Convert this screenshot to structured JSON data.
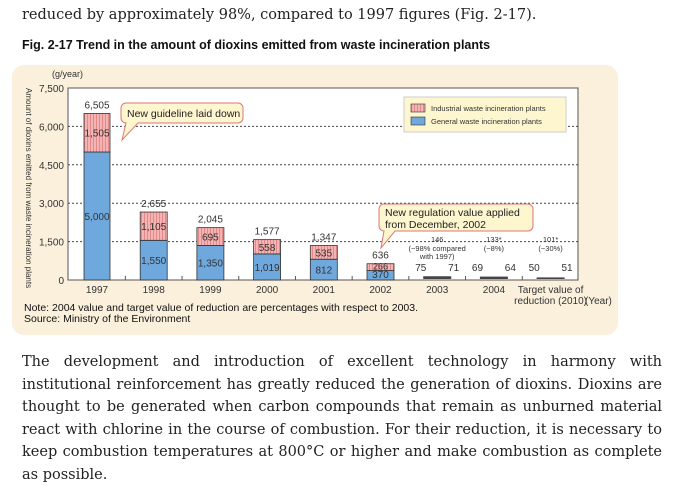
{
  "intro": "reduced by approximately 98%, compared to 1997 figures (Fig. 2-17).",
  "body": "The development and introduction of excellent technology in harmony with institutional reinforcement has greatly reduced the generation of dioxins. Dioxins are thought to be generated when carbon compounds that remain as unburned material react with chlorine in the course of combustion. For their reduction, it is necessary to keep combustion temperatures at 800°C or higher and make combustion as complete as possible.",
  "note": "Note: 2004 value and target value of reduction are percentages with respect to 2003.",
  "source": "Source: Ministry of the Environment",
  "chart_data": {
    "type": "bar",
    "stacked": true,
    "title": "Fig. 2-17 Trend in the amount of dioxins emitted from waste incineration plants",
    "ylabel": "Amount of dioxins emitted from waste incineration plants",
    "yunit": "(g/year)",
    "xunit": "(Year)",
    "ylim": [
      0,
      7500
    ],
    "yticks": [
      "0",
      "1,500",
      "3,000",
      "4,500",
      "6,000",
      "7,500"
    ],
    "grid": "dashed horizontal",
    "legend_position": "top-right",
    "categories": [
      "1997",
      "1998",
      "1999",
      "2000",
      "2001",
      "2002",
      "2003",
      "2004",
      "Target value of reduction (2010)"
    ],
    "series": [
      {
        "name": "General waste incineration plants",
        "color": "#6fa8dc",
        "values": [
          5000,
          1550,
          1350,
          1019,
          812,
          370,
          75,
          69,
          50
        ],
        "labels": [
          "5,000",
          "1,550",
          "1,350",
          "1,019",
          "812",
          "370",
          "75",
          "69",
          "50"
        ]
      },
      {
        "name": "Industrial waste incineration plants",
        "color": "#f2a5a5",
        "values": [
          1505,
          1105,
          695,
          558,
          535,
          266,
          71,
          64,
          51
        ],
        "labels": [
          "1,505",
          "1,105",
          "695",
          "558",
          "535",
          "266",
          "71",
          "64",
          "51"
        ]
      }
    ],
    "totals": [
      "6,505",
      "2,655",
      "2,045",
      "1,577",
      "1,347",
      "636",
      "146",
      "133*",
      "101*"
    ],
    "total_notes": [
      "",
      "",
      "",
      "",
      "",
      "",
      "(−98% compared with 1997)",
      "(−8%)",
      "(−30%)"
    ],
    "annotations": [
      "New guideline laid down",
      "New regulation value applied from December, 2002"
    ]
  }
}
